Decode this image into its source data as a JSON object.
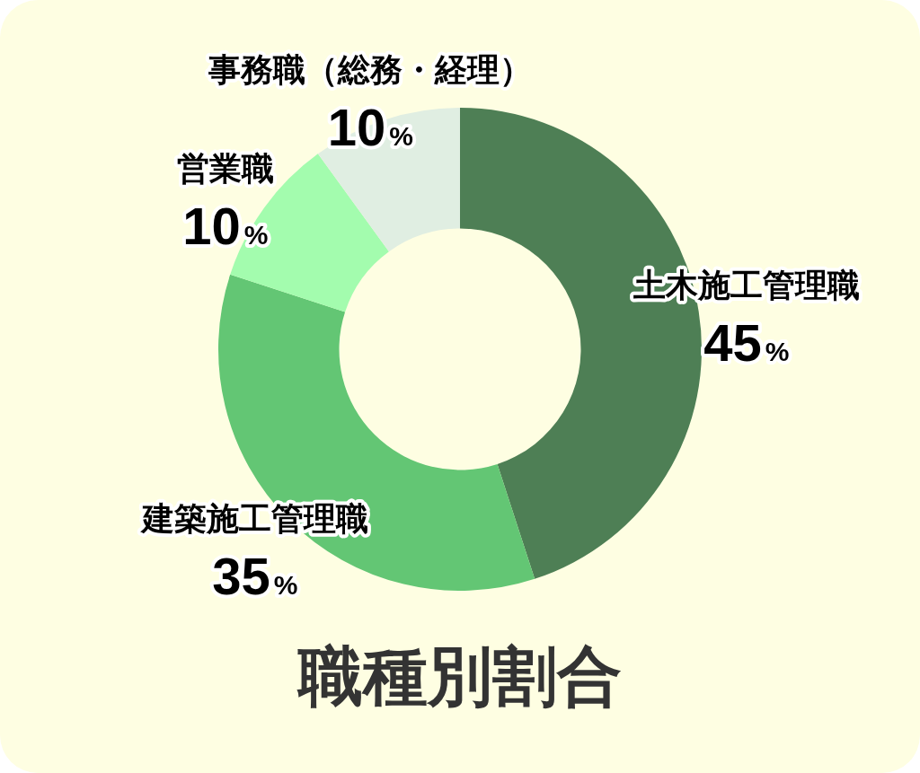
{
  "chart_data": {
    "type": "donut",
    "title": "職種別割合",
    "categories": [
      "土木施工管理職",
      "建築施工管理職",
      "営業職",
      "事務職（総務・経理）"
    ],
    "values": [
      45,
      35,
      10,
      10
    ],
    "colors": [
      "#4e7f55",
      "#63c674",
      "#a3fcae",
      "#e0eee2"
    ],
    "value_labels": [
      "45%",
      "35%",
      "10%",
      "10%"
    ]
  }
}
